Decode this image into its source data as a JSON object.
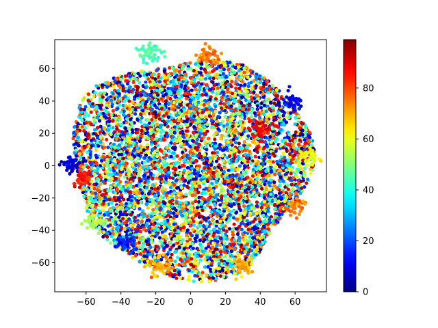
{
  "chart_data": {
    "type": "scatter",
    "title": "",
    "xlabel": "",
    "ylabel": "",
    "xlim": [
      -78,
      78
    ],
    "ylim": [
      -78,
      78
    ],
    "x_ticks": [
      -60,
      -40,
      -20,
      0,
      20,
      40,
      60
    ],
    "y_ticks": [
      -60,
      -40,
      -20,
      0,
      20,
      40,
      60
    ],
    "x_tick_labels": [
      "−60",
      "−40",
      "−20",
      "0",
      "20",
      "40",
      "60"
    ],
    "y_tick_labels": [
      "−60",
      "−40",
      "−20",
      "0",
      "20",
      "40",
      "60"
    ],
    "grid": false,
    "legend": "none",
    "colormap": "jet",
    "colorbar": {
      "range": [
        0,
        99
      ],
      "ticks": [
        0,
        20,
        40,
        60,
        80
      ],
      "tick_labels": [
        "0",
        "20",
        "40",
        "60",
        "80"
      ],
      "position": "right"
    },
    "point_cloud": {
      "description_of_distribution": "dense roughly circular cloud of t-SNE embedded points",
      "center": [
        0,
        0
      ],
      "radius_x": 70,
      "radius_y": 70,
      "approx_point_count": 6000,
      "color_value_range": [
        0,
        99
      ],
      "clusters": [
        {
          "x": -23,
          "y": 71,
          "value": 45
        },
        {
          "x": 58,
          "y": 39,
          "value": 10
        },
        {
          "x": 68,
          "y": 5,
          "value": 60
        },
        {
          "x": -55,
          "y": -35,
          "value": 55
        },
        {
          "x": -18,
          "y": -62,
          "value": 70
        },
        {
          "x": 40,
          "y": 22,
          "value": 88
        },
        {
          "x": -68,
          "y": 0,
          "value": 8
        },
        {
          "x": -62,
          "y": -8,
          "value": 85
        },
        {
          "x": 30,
          "y": -62,
          "value": 70
        },
        {
          "x": 60,
          "y": -25,
          "value": 75
        },
        {
          "x": -38,
          "y": -48,
          "value": 15
        },
        {
          "x": 10,
          "y": 68,
          "value": 75
        }
      ]
    }
  }
}
